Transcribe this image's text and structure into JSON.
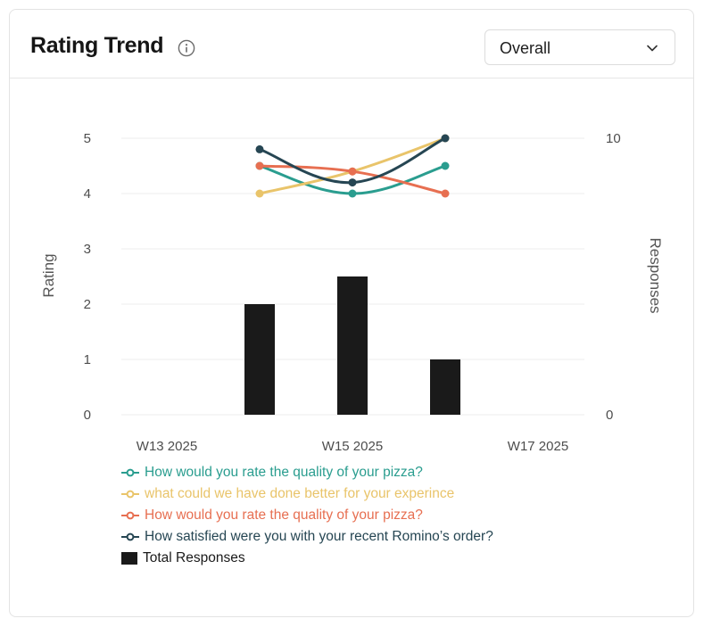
{
  "card": {
    "title": "Rating Trend",
    "info_icon": "info-circle-icon",
    "dropdown": {
      "selected": "Overall",
      "icon": "chevron-down-icon"
    }
  },
  "colors": {
    "teal": "#2a9d8f",
    "yellow": "#e9c46a",
    "orange": "#e76f51",
    "dark": "#264653",
    "bars": "#1a1a1a",
    "grid": "#ececec"
  },
  "chart_data": {
    "type": "line",
    "x_ticks": [
      "W13 2025",
      "W15 2025",
      "W17 2025"
    ],
    "x": [
      "W14 2025",
      "W15 2025",
      "W16 2025"
    ],
    "y_left": {
      "label": "Rating",
      "ticks": [
        "5",
        "4",
        "3",
        "2",
        "1",
        "0"
      ],
      "range": [
        0,
        5
      ]
    },
    "y_right": {
      "label": "Responses",
      "ticks": [
        "10",
        "0"
      ],
      "range": [
        0,
        10
      ]
    },
    "series": [
      {
        "name": "How would you rate the quality of your pizza?",
        "color": "#2a9d8f",
        "values": [
          4.5,
          4.0,
          4.5
        ]
      },
      {
        "name": "what could we have done better for your experince",
        "color": "#e9c46a",
        "values": [
          4.0,
          4.4,
          5.0
        ]
      },
      {
        "name": "How would you rate the quality of your pizza?",
        "color": "#e76f51",
        "values": [
          4.5,
          4.4,
          4.0
        ]
      },
      {
        "name": "How satisfied were you with your recent Romino’s order?",
        "color": "#264653",
        "values": [
          4.8,
          4.2,
          5.0
        ]
      }
    ],
    "bars": {
      "name": "Total Responses",
      "color": "#1a1a1a",
      "axis": "right",
      "values": [
        4,
        5,
        2
      ]
    },
    "grid": true,
    "legend_position": "bottom-left"
  }
}
